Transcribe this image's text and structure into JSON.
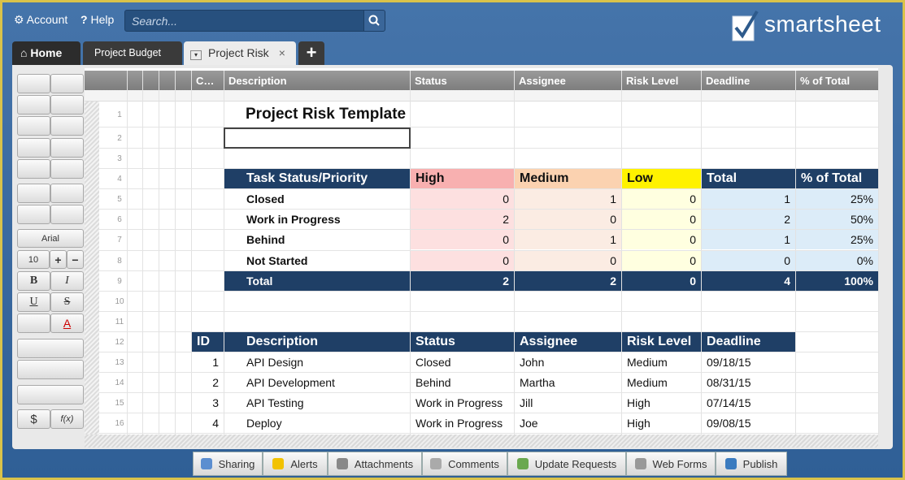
{
  "topbar": {
    "account": "Account",
    "help_icon": "?",
    "help": "Help",
    "search_placeholder": "Search...",
    "brand": "smartsheet"
  },
  "tabs": [
    "Home",
    "Project Budget",
    "Project Risk"
  ],
  "toolbar": {
    "font": "Arial",
    "font_size": "10",
    "bold": "B",
    "italic": "I",
    "underline": "U",
    "strike": "S",
    "text_color": "A",
    "currency": "$",
    "formula": "f(x)"
  },
  "columns": [
    "C…",
    "Description",
    "Status",
    "Assignee",
    "Risk Level",
    "Deadline",
    "% of Total"
  ],
  "row_numbers": [
    1,
    2,
    3,
    4,
    5,
    6,
    7,
    8,
    9,
    10,
    11,
    12,
    13,
    14,
    15,
    16
  ],
  "sheet_title": "Project Risk Template",
  "summary": {
    "header": [
      "Task Status/Priority",
      "High",
      "Medium",
      "Low",
      "Total",
      "% of Total"
    ],
    "rows": [
      [
        "Closed",
        0,
        1,
        0,
        1,
        "25%"
      ],
      [
        "Work in Progress",
        2,
        0,
        0,
        2,
        "50%"
      ],
      [
        "Behind",
        0,
        1,
        0,
        1,
        "25%"
      ],
      [
        "Not Started",
        0,
        0,
        0,
        0,
        "0%"
      ]
    ],
    "total": [
      "Total",
      2,
      2,
      0,
      4,
      "100%"
    ]
  },
  "tasks": {
    "header": [
      "ID",
      "Description",
      "Status",
      "Assignee",
      "Risk Level",
      "Deadline"
    ],
    "rows": [
      [
        1,
        "API Design",
        "Closed",
        "John",
        "Medium",
        "09/18/15"
      ],
      [
        2,
        "API Development",
        "Behind",
        "Martha",
        "Medium",
        "08/31/15"
      ],
      [
        3,
        "API Testing",
        "Work in Progress",
        "Jill",
        "High",
        "07/14/15"
      ],
      [
        4,
        "Deploy",
        "Work in Progress",
        "Joe",
        "High",
        "09/08/15"
      ]
    ]
  },
  "bottom_bar": [
    "Sharing",
    "Alerts",
    "Attachments",
    "Comments",
    "Update Requests",
    "Web Forms",
    "Publish"
  ]
}
